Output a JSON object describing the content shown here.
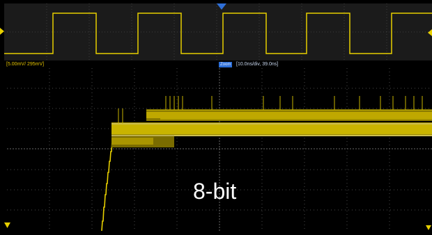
{
  "colors": {
    "trace": "#e8d000",
    "trace_dim": "#9a8a00",
    "grid": "#4a4a4a",
    "overview_bg": "#1b1b1b",
    "zoom_badge": "#2d6fd8",
    "trigger_marker": "#2f6fd6"
  },
  "status_bar": {
    "scale": "[5.00mV/ 295mV]",
    "zoom_label": "Zoom",
    "zoom_params": "[10.0ns/div, 39.0ns]"
  },
  "overlay": {
    "bit_depth_label": "8-bit"
  },
  "overview": {
    "signal": "square-wave",
    "level_high": 1,
    "level_low": 0
  },
  "icons": [
    "channel-offset-marker-icon",
    "trigger-position-marker-icon",
    "trigger-level-marker-icon",
    "zoom-position-marker-icon"
  ]
}
